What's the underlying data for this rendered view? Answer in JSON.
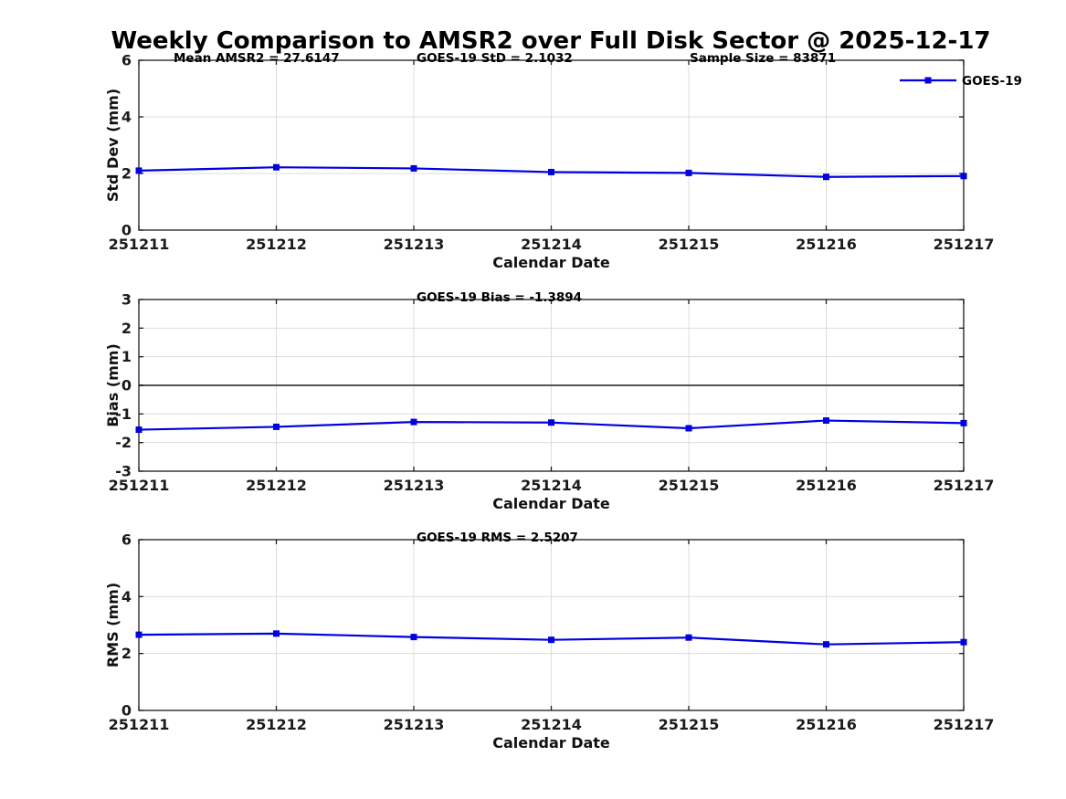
{
  "title": "Weekly Comparison to AMSR2 over Full Disk Sector @ 2025-12-17",
  "colors": {
    "line": "#0000E0",
    "marker": "#0000E0",
    "grid": "#DCDCDC",
    "zero_line": "#555555",
    "axis": "#1A1A1A"
  },
  "legend": {
    "label": "GOES-19"
  },
  "chart_data": [
    {
      "id": "std-dev",
      "type": "line",
      "annotations": [
        "Mean AMSR2 = 27.6147",
        "GOES-19 StD = 2.1032",
        "Sample Size = 83871"
      ],
      "categories": [
        "251211",
        "251212",
        "251213",
        "251214",
        "251215",
        "251216",
        "251217"
      ],
      "series": [
        {
          "name": "GOES-19",
          "values": [
            2.1,
            2.22,
            2.18,
            2.05,
            2.02,
            1.88,
            1.91
          ]
        }
      ],
      "xlabel": "Calendar Date",
      "ylabel": "Std Dev (mm)",
      "ylim": [
        0,
        6
      ],
      "yticks": [
        0,
        2,
        4,
        6
      ],
      "grid": true,
      "legend_position": "top-right",
      "zero_line": false
    },
    {
      "id": "bias",
      "type": "line",
      "annotations": [
        "GOES-19 Bias  = -1.3894"
      ],
      "categories": [
        "251211",
        "251212",
        "251213",
        "251214",
        "251215",
        "251216",
        "251217"
      ],
      "series": [
        {
          "name": "GOES-19",
          "values": [
            -1.55,
            -1.45,
            -1.28,
            -1.3,
            -1.5,
            -1.23,
            -1.32
          ]
        }
      ],
      "xlabel": "Calendar Date",
      "ylabel": "Bias (mm)",
      "ylim": [
        -3,
        3
      ],
      "yticks": [
        -3,
        -2,
        -1,
        0,
        1,
        2,
        3
      ],
      "grid": true,
      "zero_line": true
    },
    {
      "id": "rms",
      "type": "line",
      "annotations": [
        "GOES-19 RMS = 2.5207"
      ],
      "categories": [
        "251211",
        "251212",
        "251213",
        "251214",
        "251215",
        "251216",
        "251217"
      ],
      "series": [
        {
          "name": "GOES-19",
          "values": [
            2.66,
            2.7,
            2.58,
            2.48,
            2.56,
            2.32,
            2.4
          ]
        }
      ],
      "xlabel": "Calendar Date",
      "ylabel": "RMS (mm)",
      "ylim": [
        0,
        6
      ],
      "yticks": [
        0,
        2,
        4,
        6
      ],
      "grid": true,
      "zero_line": false
    }
  ]
}
